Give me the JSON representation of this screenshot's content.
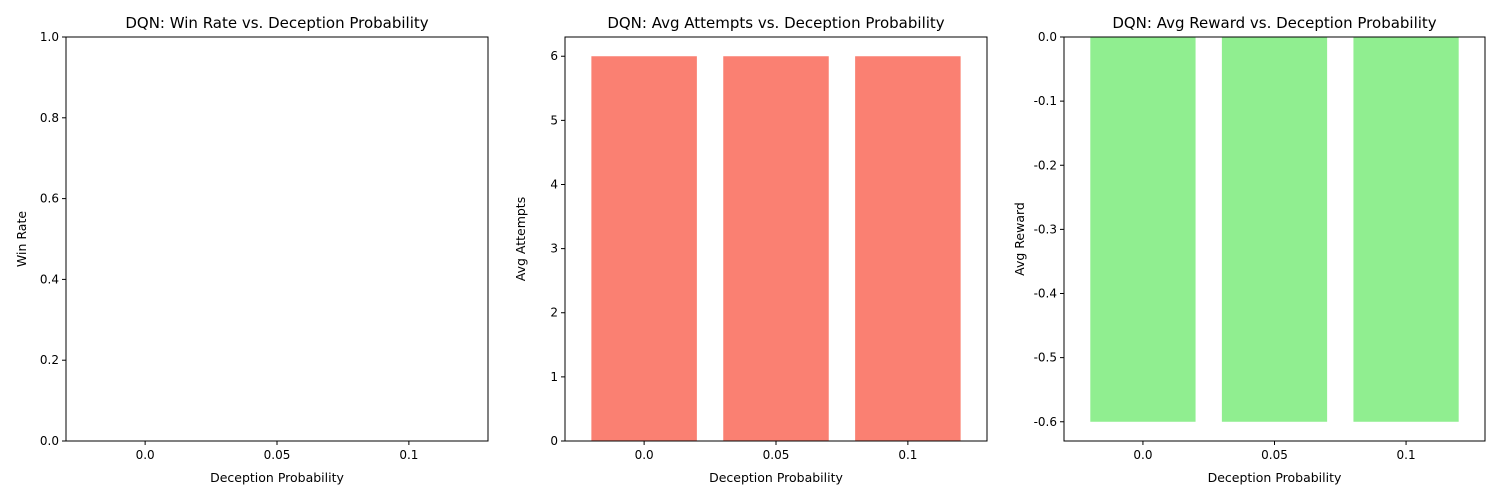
{
  "chart_data": [
    {
      "type": "bar",
      "title": "DQN: Win Rate vs. Deception Probability",
      "xlabel": "Deception Probability",
      "ylabel": "Win Rate",
      "categories": [
        "0.0",
        "0.05",
        "0.1"
      ],
      "values": [
        0.0,
        0.0,
        0.0
      ],
      "ylim": [
        0.0,
        1.0
      ],
      "yticks": [
        "0.0",
        "0.2",
        "0.4",
        "0.6",
        "0.8",
        "1.0"
      ],
      "color": "#4682b4",
      "grid": false
    },
    {
      "type": "bar",
      "title": "DQN: Avg Attempts vs. Deception Probability",
      "xlabel": "Deception Probability",
      "ylabel": "Avg Attempts",
      "categories": [
        "0.0",
        "0.05",
        "0.1"
      ],
      "values": [
        6,
        6,
        6
      ],
      "ylim": [
        0,
        6.3
      ],
      "yticks": [
        "0",
        "1",
        "2",
        "3",
        "4",
        "5",
        "6"
      ],
      "color": "#fa8072",
      "grid": false
    },
    {
      "type": "bar",
      "title": "DQN: Avg Reward vs. Deception Probability",
      "xlabel": "Deception Probability",
      "ylabel": "Avg Reward",
      "categories": [
        "0.0",
        "0.05",
        "0.1"
      ],
      "values": [
        -0.6,
        -0.6,
        -0.6
      ],
      "ylim": [
        -0.63,
        0.0
      ],
      "yticks": [
        "-0.6",
        "-0.5",
        "-0.4",
        "-0.3",
        "-0.2",
        "-0.1",
        "0.0"
      ],
      "color": "#90ee90",
      "grid": false
    }
  ]
}
